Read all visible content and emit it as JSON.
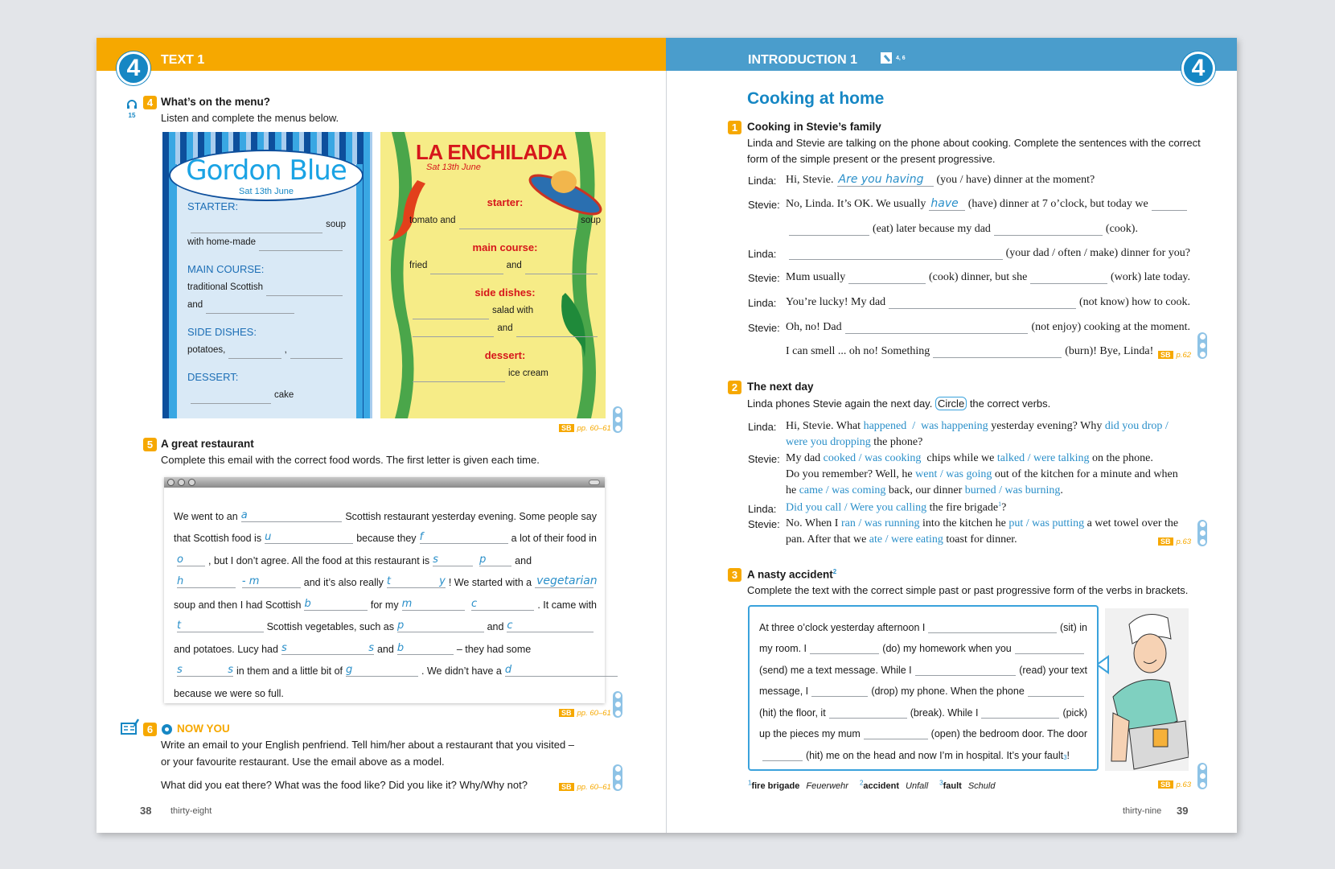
{
  "left": {
    "header": {
      "chapter": "4",
      "section": "TEXT 1"
    },
    "ex4": {
      "number": "4",
      "audio_track": "15",
      "title": "What’s on the menu?",
      "instruction": "Listen and complete the menus below.",
      "gordon": {
        "title": "Gordon Blue",
        "date": "Sat 13th June",
        "items": [
          {
            "h": "STARTER:"
          },
          {
            "segs": [
              {
                "hint": ""
              },
              "soup"
            ]
          },
          {
            "segs": [
              "with home-made",
              {
                "hint": ""
              }
            ]
          },
          {
            "h": "MAIN COURSE:"
          },
          {
            "segs": [
              "traditional Scottish",
              {
                "hint": ""
              }
            ]
          },
          {
            "segs": [
              "and",
              {
                "hint": ""
              }
            ]
          },
          {
            "h": "SIDE DISHES:"
          },
          {
            "segs": [
              "potatoes,",
              {
                "hint": ""
              },
              ",",
              {
                "hint": ""
              }
            ]
          },
          {
            "h": "DESSERT:"
          },
          {
            "segs": [
              {
                "hint": ""
              },
              "cake"
            ]
          }
        ]
      },
      "enchilada": {
        "title": "LA ENCHILADA",
        "date": "Sat 13th June",
        "items": [
          {
            "h": "starter:"
          },
          {
            "segs": [
              "tomato and",
              {
                "hint": ""
              },
              "soup"
            ]
          },
          {
            "h": "main course:"
          },
          {
            "segs": [
              "fried",
              {
                "hint": ""
              },
              "and",
              {
                "hint": ""
              }
            ]
          },
          {
            "h": "side dishes:"
          },
          {
            "segs": [
              {
                "hint": ""
              },
              "salad with"
            ]
          },
          {
            "segs": [
              {
                "hint": ""
              },
              "and",
              {
                "hint": ""
              }
            ]
          },
          {
            "h": "dessert:"
          },
          {
            "segs": [
              {
                "hint": ""
              },
              "ice cream"
            ]
          }
        ]
      },
      "sb": {
        "label": "SB",
        "pages": "pp. 60–61"
      }
    },
    "ex5": {
      "number": "5",
      "title": "A great restaurant",
      "instruction": "Complete this email with the correct food words. The first letter is given each time.",
      "lines": [
        [
          "We went to an",
          {
            "hint": "a"
          },
          "Scottish restaurant yesterday evening. Some people say"
        ],
        [
          "that Scottish food is",
          {
            "hint": "u"
          },
          "because they",
          {
            "hint": "f"
          },
          "a lot of their food in"
        ],
        [
          {
            "hint": "o"
          },
          ", but I don’t agree. All the food at this restaurant is",
          {
            "hint": "s"
          },
          {
            "hint": "p"
          },
          "and"
        ],
        [
          {
            "hint": "h"
          },
          {
            "hint": "- m"
          },
          "and it’s also really",
          {
            "hint": "t",
            "hint_end": "y"
          },
          "! We started with a",
          {
            "answer": "vegetarian"
          }
        ],
        [
          "soup and then I had Scottish",
          {
            "hint": "b"
          },
          "for my",
          {
            "hint": "m"
          },
          {
            "hint": "c"
          },
          ". It came with"
        ],
        [
          {
            "hint": "t"
          },
          "Scottish vegetables, such as",
          {
            "hint": "p"
          },
          "and",
          {
            "hint": "c"
          }
        ],
        [
          "and potatoes. Lucy had",
          {
            "hint": "s",
            "hint_end": "s"
          },
          "and",
          {
            "hint": "b"
          },
          "–  they had some"
        ],
        [
          {
            "hint": "s",
            "hint_end": "s"
          },
          "in them and a little bit of",
          {
            "hint": "g"
          },
          ". We didn’t have a",
          {
            "hint": "d"
          }
        ],
        [
          "because we were so full."
        ]
      ],
      "sb": {
        "label": "SB",
        "pages": "pp. 60–61"
      }
    },
    "ex6": {
      "number": "6",
      "title": "NOW YOU",
      "text_1": "Write an email to your English penfriend. Tell him/her about a restaurant that you visited –",
      "text_2": "or your favourite restaurant. Use the email above as a model.",
      "question": "What did you eat there? What was the food like? Did you like it? Why/Why not?",
      "sb": {
        "label": "SB",
        "pages": "pp. 60–61"
      }
    },
    "footer": {
      "page_number": "38",
      "page_words": "thirty-eight"
    }
  },
  "right": {
    "header": {
      "chapter": "4",
      "section": "INTRODUCTION 1",
      "media_ref": "4, 6"
    },
    "title": "Cooking at home",
    "ex1": {
      "number": "1",
      "title": "Cooking in Stevie’s family",
      "instruction_1": "Linda and Stevie are talking on the phone about cooking. Complete the sentences with the correct",
      "instruction_2": "form of the simple present or the present progressive.",
      "rows": [
        {
          "speaker": "Linda:",
          "segs": [
            "Hi, Stevie.",
            {
              "answer": "Are you having"
            },
            "(you / have) dinner at the moment?"
          ]
        },
        {
          "speaker": "Stevie:",
          "segs": [
            "No, Linda. It’s OK. We usually",
            {
              "answer": "have"
            },
            "(have) dinner at 7 o’clock, but today we",
            {
              "hint": ""
            }
          ]
        },
        {
          "speaker": "",
          "segs": [
            {
              "hint": ""
            },
            "(eat) later because my dad",
            {
              "hint": ""
            },
            "(cook)."
          ]
        },
        {
          "speaker": "Linda:",
          "segs": [
            {
              "hint": ""
            },
            "(your dad / often / make) dinner for you?"
          ]
        },
        {
          "speaker": "Stevie:",
          "segs": [
            "Mum usually",
            {
              "hint": ""
            },
            "(cook) dinner, but she",
            {
              "hint": ""
            },
            "(work) late today."
          ]
        },
        {
          "speaker": "Linda:",
          "segs": [
            "You’re lucky! My dad",
            {
              "hint": ""
            },
            "(not know) how to cook."
          ]
        },
        {
          "speaker": "Stevie:",
          "segs": [
            "Oh, no! Dad",
            {
              "hint": ""
            },
            "(not enjoy) cooking at the moment."
          ]
        },
        {
          "speaker": "",
          "segs": [
            "I can smell ... oh no! Something",
            {
              "hint": ""
            },
            "(burn)! Bye, Linda!"
          ]
        }
      ],
      "sb": {
        "label": "SB",
        "pages": "p.62"
      }
    },
    "ex2": {
      "number": "2",
      "title": "The next day",
      "instruction_1": "Linda phones Stevie again the next day.",
      "circle_word": "Circle",
      "instruction_2": "the correct verbs.",
      "rows": [
        {
          "speaker": "Linda:",
          "segs": [
            "Hi, Stevie. What ",
            {
              "opt": "happened  /  was happening"
            },
            " yesterday evening? Why ",
            {
              "opt": "did you drop /"
            }
          ]
        },
        {
          "speaker": "",
          "segs": [
            {
              "opt": "were you dropping"
            },
            " the phone?"
          ]
        },
        {
          "speaker": "Stevie:",
          "segs": [
            "My dad ",
            {
              "opt": "cooked / was cooking"
            },
            "  chips while we ",
            {
              "opt": "talked / were talking"
            },
            " on the phone."
          ]
        },
        {
          "speaker": "",
          "segs": [
            "Do you remember? Well, he ",
            {
              "opt": "went / was going"
            },
            " out of the kitchen for a minute and when"
          ]
        },
        {
          "speaker": "",
          "segs": [
            "he ",
            {
              "opt": "came / was coming"
            },
            " back, our dinner ",
            {
              "opt": "burned / was burning"
            },
            "."
          ]
        },
        {
          "speaker": "Linda:",
          "segs": [
            {
              "opt": "Did you call / Were you calling"
            },
            " the fire brigade",
            {
              "sup": "1"
            },
            "?"
          ]
        },
        {
          "speaker": "Stevie:",
          "segs": [
            "No. When I ",
            {
              "opt": "ran / was running"
            },
            " into the kitchen he ",
            {
              "opt": "put / was putting"
            },
            " a wet towel over the"
          ]
        },
        {
          "speaker": "",
          "segs": [
            "pan. After that we ",
            {
              "opt": "ate / were eating"
            },
            " toast for dinner."
          ]
        }
      ],
      "sb": {
        "label": "SB",
        "pages": "p.63"
      }
    },
    "ex3": {
      "number": "3",
      "title": "A nasty accident",
      "title_sup": "2",
      "instruction": "Complete the text with the correct simple past or past progressive form of the verbs in brackets.",
      "lines": [
        [
          "At three o’clock yesterday afternoon I",
          {
            "hint": ""
          },
          "(sit) in"
        ],
        [
          "my room. I",
          {
            "hint": ""
          },
          "(do) my homework when you",
          {
            "hint": ""
          }
        ],
        [
          "(send) me a text message. While I",
          {
            "hint": ""
          },
          "(read) your text"
        ],
        [
          "message, I",
          {
            "hint": ""
          },
          "(drop) my phone. When the phone",
          {
            "hint": ""
          }
        ],
        [
          "(hit) the floor, it",
          {
            "hint": ""
          },
          "(break). While I",
          {
            "hint": ""
          },
          "(pick)"
        ],
        [
          "up the pieces my mum",
          {
            "hint": ""
          },
          "(open) the bedroom door. The door"
        ],
        [
          {
            "hint": ""
          },
          "(hit) me on the head and now I’m in hospital. It’s your fault",
          {
            "sup": "3"
          },
          "!"
        ]
      ],
      "footnotes": [
        {
          "n": "1",
          "en": "fire brigade",
          "de": "Feuerwehr"
        },
        {
          "n": "2",
          "en": "accident",
          "de": "Unfall"
        },
        {
          "n": "3",
          "en": "fault",
          "de": "Schuld"
        }
      ],
      "sb": {
        "label": "SB",
        "pages": "p.63"
      }
    },
    "footer": {
      "page_number": "39",
      "page_words": "thirty-nine"
    }
  },
  "colors": {
    "orange": "#f6a800",
    "blue_header": "#4a9dcc",
    "answer_blue": "#2a8fc9",
    "menu_red": "#d6161b"
  }
}
